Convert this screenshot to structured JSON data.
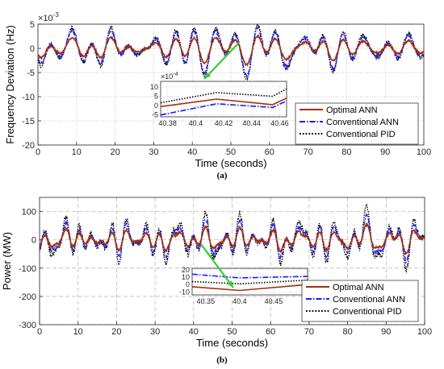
{
  "chart_data": [
    {
      "type": "line",
      "panel": "(a)",
      "xlabel": "Time (seconds)",
      "ylabel": "Frequency Deviation (Hz)",
      "y_multiplier_label": "×10",
      "y_multiplier_exp": "-3",
      "xlim": [
        0,
        100
      ],
      "ylim": [
        -20,
        5
      ],
      "xticks": [
        0,
        10,
        20,
        30,
        40,
        50,
        60,
        70,
        80,
        90,
        100
      ],
      "yticks": [
        -20,
        -15,
        -10,
        -5,
        0,
        5
      ],
      "grid": true,
      "grid_style": "dotted",
      "legend_position": "inside-lower-right",
      "series": [
        {
          "name": "Optimal ANN",
          "color": "#a0300e",
          "style": "solid",
          "amplitude": 1.6
        },
        {
          "name": "Conventional ANN",
          "color": "#1a1aff",
          "style": "dashdot",
          "amplitude": 2.6
        },
        {
          "name": "Conventional PID",
          "color": "#000000",
          "style": "dotted",
          "amplitude": 3.0
        }
      ],
      "inset": {
        "multiplier_label": "×10",
        "multiplier_exp": "-4",
        "xlim": [
          40.375,
          40.465
        ],
        "ylim": [
          -6,
          13
        ],
        "xticks": [
          40.38,
          40.4,
          40.42,
          40.44,
          40.46
        ],
        "xtick_labels": [
          "40.38",
          "40.4",
          "40.42",
          "40.44",
          "40.46"
        ],
        "yticks": [
          -5,
          0,
          5,
          10
        ],
        "x": [
          40.375,
          40.415,
          40.455,
          40.465
        ],
        "series": [
          {
            "name": "Optimal ANN",
            "y": [
              -0.5,
              3.5,
              0.5,
              4
            ]
          },
          {
            "name": "Conventional ANN",
            "y": [
              -5,
              1,
              -1,
              2.5
            ]
          },
          {
            "name": "Conventional PID",
            "y": [
              1.5,
              7,
              5,
              9
            ]
          }
        ],
        "arrow_color": "#33cc33"
      }
    },
    {
      "type": "line",
      "panel": "(b)",
      "xlabel": "Time (seconds)",
      "ylabel": "Power (MW)",
      "xlim": [
        0,
        100
      ],
      "ylim": [
        -300,
        150
      ],
      "xticks": [
        0,
        10,
        20,
        30,
        40,
        50,
        60,
        70,
        80,
        90,
        100
      ],
      "yticks": [
        -300,
        -200,
        -100,
        0,
        100
      ],
      "grid": true,
      "grid_style": "dashed",
      "legend_position": "inside-lower-right",
      "series": [
        {
          "name": "Optimal ANN",
          "color": "#a0300e",
          "style": "solid",
          "amplitude": 35
        },
        {
          "name": "Conventional ANN",
          "color": "#1a1aff",
          "style": "dashdot",
          "amplitude": 55
        },
        {
          "name": "Conventional PID",
          "color": "#000000",
          "style": "dotted",
          "amplitude": 75
        }
      ],
      "inset": {
        "xlim": [
          40.33,
          40.5
        ],
        "ylim": [
          -14,
          22
        ],
        "xticks": [
          40.35,
          40.4,
          40.45
        ],
        "xtick_labels": [
          "40.35",
          "40.4",
          "40.45"
        ],
        "yticks": [
          -10,
          0,
          10,
          20
        ],
        "x": [
          40.33,
          40.4,
          40.5
        ],
        "series": [
          {
            "name": "Optimal ANN",
            "y": [
              -3,
              -8,
              0
            ]
          },
          {
            "name": "Conventional ANN",
            "y": [
              14,
              9,
              11
            ]
          },
          {
            "name": "Conventional PID",
            "y": [
              4,
              1,
              6
            ]
          }
        ],
        "arrow_color": "#33cc33"
      }
    }
  ],
  "captions": {
    "a": "(a)",
    "b": "(b)"
  }
}
